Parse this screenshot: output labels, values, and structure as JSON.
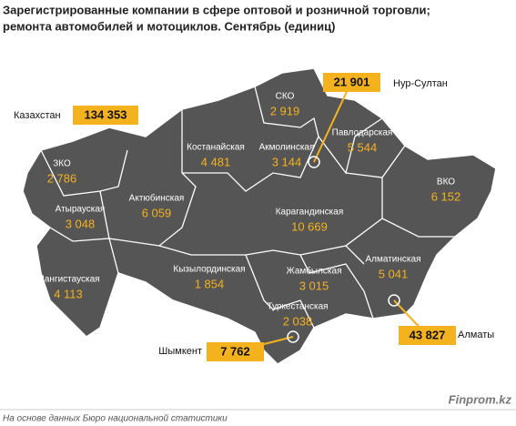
{
  "header": {
    "title": [
      "Зарегистрированные компании в сфере оптовой и розничной торговли;",
      "ремонта автомобилей и мотоциклов. Сентябрь (единиц)"
    ]
  },
  "total": {
    "label": "Казахстан",
    "value": "134 353"
  },
  "regions": [
    {
      "name": "ЗКО",
      "value": "2 786"
    },
    {
      "name": "Атырауская",
      "value": "3 048"
    },
    {
      "name": "Мангистауская",
      "value": "4 113"
    },
    {
      "name": "Актюбинская",
      "value": "6 059"
    },
    {
      "name": "Костанайская",
      "value": "4 481"
    },
    {
      "name": "СКО",
      "value": "2 919"
    },
    {
      "name": "Акмолинская",
      "value": "3 144"
    },
    {
      "name": "Павлодарская",
      "value": "5 544"
    },
    {
      "name": "ВКО",
      "value": "6 152"
    },
    {
      "name": "Карагандинская",
      "value": "10 669"
    },
    {
      "name": "Кызылординская",
      "value": "1 854"
    },
    {
      "name": "Жамбылская",
      "value": "3 015"
    },
    {
      "name": "Алматинская",
      "value": "5 041"
    },
    {
      "name": "Туркестанская",
      "value": "2 038"
    }
  ],
  "cities": [
    {
      "name": "Нур-Султан",
      "value": "21 901"
    },
    {
      "name": "Алматы",
      "value": "43 827"
    },
    {
      "name": "Шымкент",
      "value": "7 762"
    }
  ],
  "footer": {
    "brand": "Finprom.kz",
    "source": "На основе данных Бюро национальной статистики"
  }
}
